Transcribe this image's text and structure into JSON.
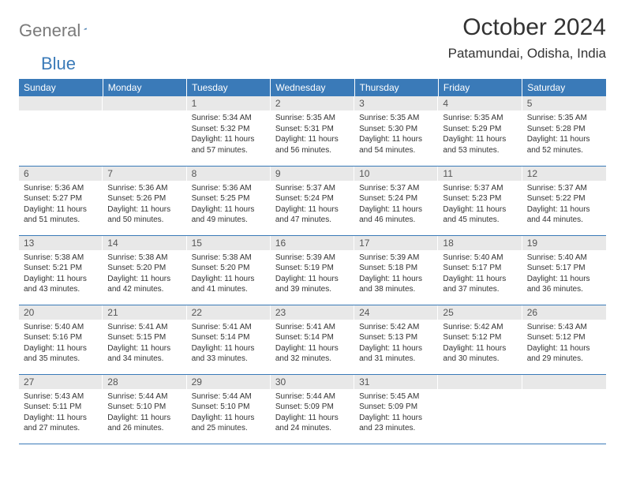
{
  "logo": {
    "gray": "General",
    "blue": "Blue"
  },
  "title": "October 2024",
  "location": "Patamundai, Odisha, India",
  "colors": {
    "header_bg": "#3a7ab8",
    "daynum_bg": "#e8e8e8",
    "border": "#3a7ab8"
  },
  "weekdays": [
    "Sunday",
    "Monday",
    "Tuesday",
    "Wednesday",
    "Thursday",
    "Friday",
    "Saturday"
  ],
  "layout": {
    "first_weekday_index": 2,
    "days_in_month": 31
  },
  "days": {
    "1": {
      "sunrise": "5:34 AM",
      "sunset": "5:32 PM",
      "daylight": "11 hours and 57 minutes."
    },
    "2": {
      "sunrise": "5:35 AM",
      "sunset": "5:31 PM",
      "daylight": "11 hours and 56 minutes."
    },
    "3": {
      "sunrise": "5:35 AM",
      "sunset": "5:30 PM",
      "daylight": "11 hours and 54 minutes."
    },
    "4": {
      "sunrise": "5:35 AM",
      "sunset": "5:29 PM",
      "daylight": "11 hours and 53 minutes."
    },
    "5": {
      "sunrise": "5:35 AM",
      "sunset": "5:28 PM",
      "daylight": "11 hours and 52 minutes."
    },
    "6": {
      "sunrise": "5:36 AM",
      "sunset": "5:27 PM",
      "daylight": "11 hours and 51 minutes."
    },
    "7": {
      "sunrise": "5:36 AM",
      "sunset": "5:26 PM",
      "daylight": "11 hours and 50 minutes."
    },
    "8": {
      "sunrise": "5:36 AM",
      "sunset": "5:25 PM",
      "daylight": "11 hours and 49 minutes."
    },
    "9": {
      "sunrise": "5:37 AM",
      "sunset": "5:24 PM",
      "daylight": "11 hours and 47 minutes."
    },
    "10": {
      "sunrise": "5:37 AM",
      "sunset": "5:24 PM",
      "daylight": "11 hours and 46 minutes."
    },
    "11": {
      "sunrise": "5:37 AM",
      "sunset": "5:23 PM",
      "daylight": "11 hours and 45 minutes."
    },
    "12": {
      "sunrise": "5:37 AM",
      "sunset": "5:22 PM",
      "daylight": "11 hours and 44 minutes."
    },
    "13": {
      "sunrise": "5:38 AM",
      "sunset": "5:21 PM",
      "daylight": "11 hours and 43 minutes."
    },
    "14": {
      "sunrise": "5:38 AM",
      "sunset": "5:20 PM",
      "daylight": "11 hours and 42 minutes."
    },
    "15": {
      "sunrise": "5:38 AM",
      "sunset": "5:20 PM",
      "daylight": "11 hours and 41 minutes."
    },
    "16": {
      "sunrise": "5:39 AM",
      "sunset": "5:19 PM",
      "daylight": "11 hours and 39 minutes."
    },
    "17": {
      "sunrise": "5:39 AM",
      "sunset": "5:18 PM",
      "daylight": "11 hours and 38 minutes."
    },
    "18": {
      "sunrise": "5:40 AM",
      "sunset": "5:17 PM",
      "daylight": "11 hours and 37 minutes."
    },
    "19": {
      "sunrise": "5:40 AM",
      "sunset": "5:17 PM",
      "daylight": "11 hours and 36 minutes."
    },
    "20": {
      "sunrise": "5:40 AM",
      "sunset": "5:16 PM",
      "daylight": "11 hours and 35 minutes."
    },
    "21": {
      "sunrise": "5:41 AM",
      "sunset": "5:15 PM",
      "daylight": "11 hours and 34 minutes."
    },
    "22": {
      "sunrise": "5:41 AM",
      "sunset": "5:14 PM",
      "daylight": "11 hours and 33 minutes."
    },
    "23": {
      "sunrise": "5:41 AM",
      "sunset": "5:14 PM",
      "daylight": "11 hours and 32 minutes."
    },
    "24": {
      "sunrise": "5:42 AM",
      "sunset": "5:13 PM",
      "daylight": "11 hours and 31 minutes."
    },
    "25": {
      "sunrise": "5:42 AM",
      "sunset": "5:12 PM",
      "daylight": "11 hours and 30 minutes."
    },
    "26": {
      "sunrise": "5:43 AM",
      "sunset": "5:12 PM",
      "daylight": "11 hours and 29 minutes."
    },
    "27": {
      "sunrise": "5:43 AM",
      "sunset": "5:11 PM",
      "daylight": "11 hours and 27 minutes."
    },
    "28": {
      "sunrise": "5:44 AM",
      "sunset": "5:10 PM",
      "daylight": "11 hours and 26 minutes."
    },
    "29": {
      "sunrise": "5:44 AM",
      "sunset": "5:10 PM",
      "daylight": "11 hours and 25 minutes."
    },
    "30": {
      "sunrise": "5:44 AM",
      "sunset": "5:09 PM",
      "daylight": "11 hours and 24 minutes."
    },
    "31": {
      "sunrise": "5:45 AM",
      "sunset": "5:09 PM",
      "daylight": "11 hours and 23 minutes."
    }
  },
  "labels": {
    "sunrise": "Sunrise:",
    "sunset": "Sunset:",
    "daylight": "Daylight:"
  }
}
